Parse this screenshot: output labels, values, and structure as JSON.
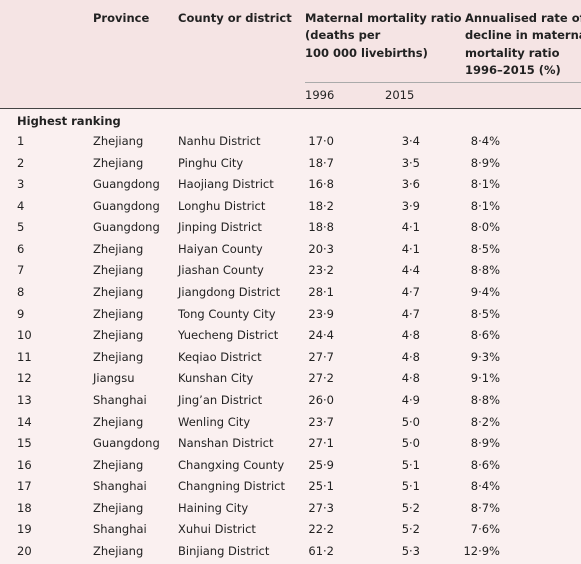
{
  "table": {
    "columns": [
      [
        "Province"
      ],
      [
        "County or district"
      ],
      [
        "Maternal mortality ratio",
        "(deaths per",
        "100 000 livebirths)"
      ],
      [
        "Annualised rate of",
        "decline in maternal",
        "mortality ratio",
        "1996–2015 (%)"
      ]
    ],
    "subcolumns": [
      "1996",
      "2015"
    ],
    "section": "Highest ranking",
    "rows": [
      [
        "1",
        "Zhejiang",
        "Nanhu District",
        "17·0",
        "3·4",
        "8·4%"
      ],
      [
        "2",
        "Zhejiang",
        "Pinghu City",
        "18·7",
        "3·5",
        "8·9%"
      ],
      [
        "3",
        "Guangdong",
        "Haojiang District",
        "16·8",
        "3·6",
        "8·1%"
      ],
      [
        "4",
        "Guangdong",
        "Longhu District",
        "18·2",
        "3·9",
        "8·1%"
      ],
      [
        "5",
        "Guangdong",
        "Jinping District",
        "18·8",
        "4·1",
        "8·0%"
      ],
      [
        "6",
        "Zhejiang",
        "Haiyan County",
        "20·3",
        "4·1",
        "8·5%"
      ],
      [
        "7",
        "Zhejiang",
        "Jiashan County",
        "23·2",
        "4·4",
        "8·8%"
      ],
      [
        "8",
        "Zhejiang",
        "Jiangdong District",
        "28·1",
        "4·7",
        "9·4%"
      ],
      [
        "9",
        "Zhejiang",
        "Tong County City",
        "23·9",
        "4·7",
        "8·5%"
      ],
      [
        "10",
        "Zhejiang",
        "Yuecheng District",
        "24·4",
        "4·8",
        "8·6%"
      ],
      [
        "11",
        "Zhejiang",
        "Keqiao District",
        "27·7",
        "4·8",
        "9·3%"
      ],
      [
        "12",
        "Jiangsu",
        "Kunshan City",
        "27·2",
        "4·8",
        "9·1%"
      ],
      [
        "13",
        "Shanghai",
        "Jing’an District",
        "26·0",
        "4·9",
        "8·8%"
      ],
      [
        "14",
        "Zhejiang",
        "Wenling City",
        "23·7",
        "5·0",
        "8·2%"
      ],
      [
        "15",
        "Guangdong",
        "Nanshan District",
        "27·1",
        "5·0",
        "8·9%"
      ],
      [
        "16",
        "Zhejiang",
        "Changxing County",
        "25·9",
        "5·1",
        "8·6%"
      ],
      [
        "17",
        "Shanghai",
        "Changning District",
        "25·1",
        "5·1",
        "8·4%"
      ],
      [
        "18",
        "Zhejiang",
        "Haining City",
        "27·3",
        "5·2",
        "8·7%"
      ],
      [
        "19",
        "Shanghai",
        "Xuhui District",
        "22·2",
        "5·2",
        "7·6%"
      ],
      [
        "20",
        "Zhejiang",
        "Binjiang District",
        "61·2",
        "5·3",
        "12·9%"
      ]
    ]
  }
}
